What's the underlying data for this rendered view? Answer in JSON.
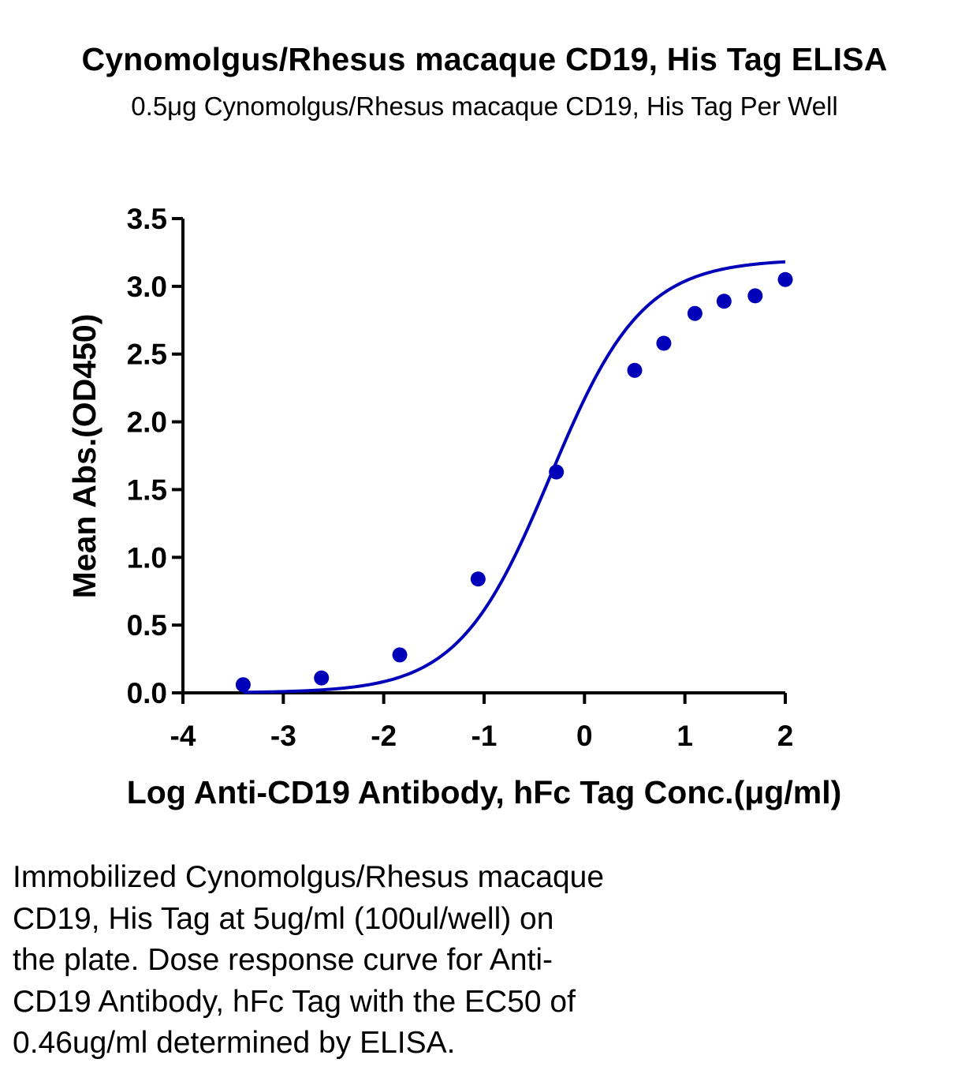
{
  "chart_data": {
    "type": "scatter",
    "title": "Cynomolgus/Rhesus macaque CD19, His Tag ELISA",
    "subtitle": "0.5μg Cynomolgus/Rhesus macaque CD19, His Tag Per Well",
    "xlabel": "Log Anti-CD19 Antibody, hFc Tag Conc.(μg/ml)",
    "ylabel": "Mean Abs.(OD450)",
    "xlim": [
      -4,
      2
    ],
    "ylim": [
      0,
      3.5
    ],
    "x_ticks": [
      -4,
      -3,
      -2,
      -1,
      0,
      1,
      2
    ],
    "x_tick_labels": [
      "-4",
      "-3",
      "-2",
      "-1",
      "0",
      "1",
      "2"
    ],
    "y_ticks": [
      0,
      0.5,
      1,
      1.5,
      2,
      2.5,
      3,
      3.5
    ],
    "y_tick_labels": [
      "0.0",
      "0.5",
      "1.0",
      "1.5",
      "2.0",
      "2.5",
      "3.0",
      "3.5"
    ],
    "grid": false,
    "color": "#0000b8",
    "series": [
      {
        "x": [
          -3.4,
          -2.62,
          -1.84,
          -1.06,
          -0.28,
          0.5,
          0.79,
          1.1,
          1.39,
          1.7,
          2.0
        ],
        "y": [
          0.06,
          0.11,
          0.28,
          0.84,
          1.63,
          2.38,
          2.58,
          2.8,
          2.89,
          2.93,
          3.05
        ]
      }
    ],
    "fit": {
      "type": "sigmoidal-4PL",
      "bottom": 0.0,
      "top": 3.2,
      "log_ec50": -0.34,
      "hill_slope": 0.95,
      "x_range": [
        -3.4,
        2.0
      ]
    }
  },
  "caption": "Immobilized Cynomolgus/Rhesus macaque\nCD19, His Tag at 5ug/ml (100ul/well) on\nthe plate. Dose response curve for Anti-\nCD19 Antibody, hFc Tag with the EC50 of\n0.46ug/ml determined by ELISA."
}
